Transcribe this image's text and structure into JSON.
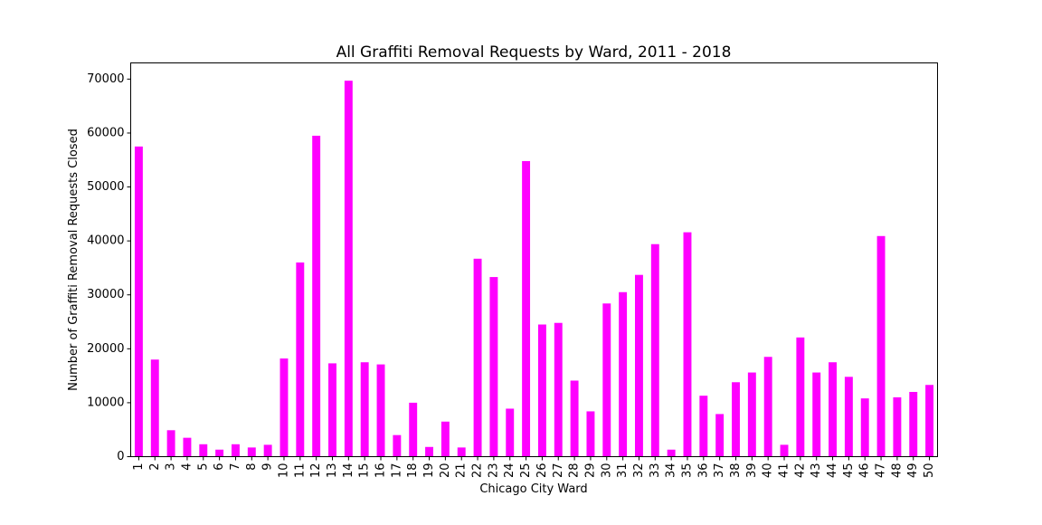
{
  "chart_data": {
    "type": "bar",
    "title": "All Graffiti Removal Requests by Ward, 2011 - 2018",
    "xlabel": "Chicago City Ward",
    "ylabel": "Number of Graffiti Removal Requests Closed",
    "ylim": [
      0,
      73000
    ],
    "yticks": [
      0,
      10000,
      20000,
      30000,
      40000,
      50000,
      60000,
      70000
    ],
    "grid": false,
    "legend": "none",
    "bar_color": "#ff00ff",
    "categories": [
      "1",
      "2",
      "3",
      "4",
      "5",
      "6",
      "7",
      "8",
      "9",
      "10",
      "11",
      "12",
      "13",
      "14",
      "15",
      "16",
      "17",
      "18",
      "19",
      "20",
      "21",
      "22",
      "23",
      "24",
      "25",
      "26",
      "27",
      "28",
      "29",
      "30",
      "31",
      "32",
      "33",
      "34",
      "35",
      "36",
      "37",
      "38",
      "39",
      "40",
      "41",
      "42",
      "43",
      "44",
      "45",
      "46",
      "47",
      "48",
      "49",
      "50"
    ],
    "values": [
      57500,
      18000,
      4900,
      3500,
      2300,
      1300,
      2300,
      1700,
      2200,
      18200,
      36000,
      59500,
      17300,
      69700,
      17500,
      17100,
      4000,
      10000,
      1800,
      6500,
      1700,
      36700,
      33300,
      8900,
      54800,
      24500,
      24800,
      14100,
      8400,
      28400,
      30500,
      33700,
      39400,
      1300,
      41600,
      11300,
      7900,
      13800,
      15600,
      18500,
      2200,
      22100,
      15600,
      17500,
      14800,
      10800,
      40900,
      11000,
      12000,
      13300
    ]
  }
}
